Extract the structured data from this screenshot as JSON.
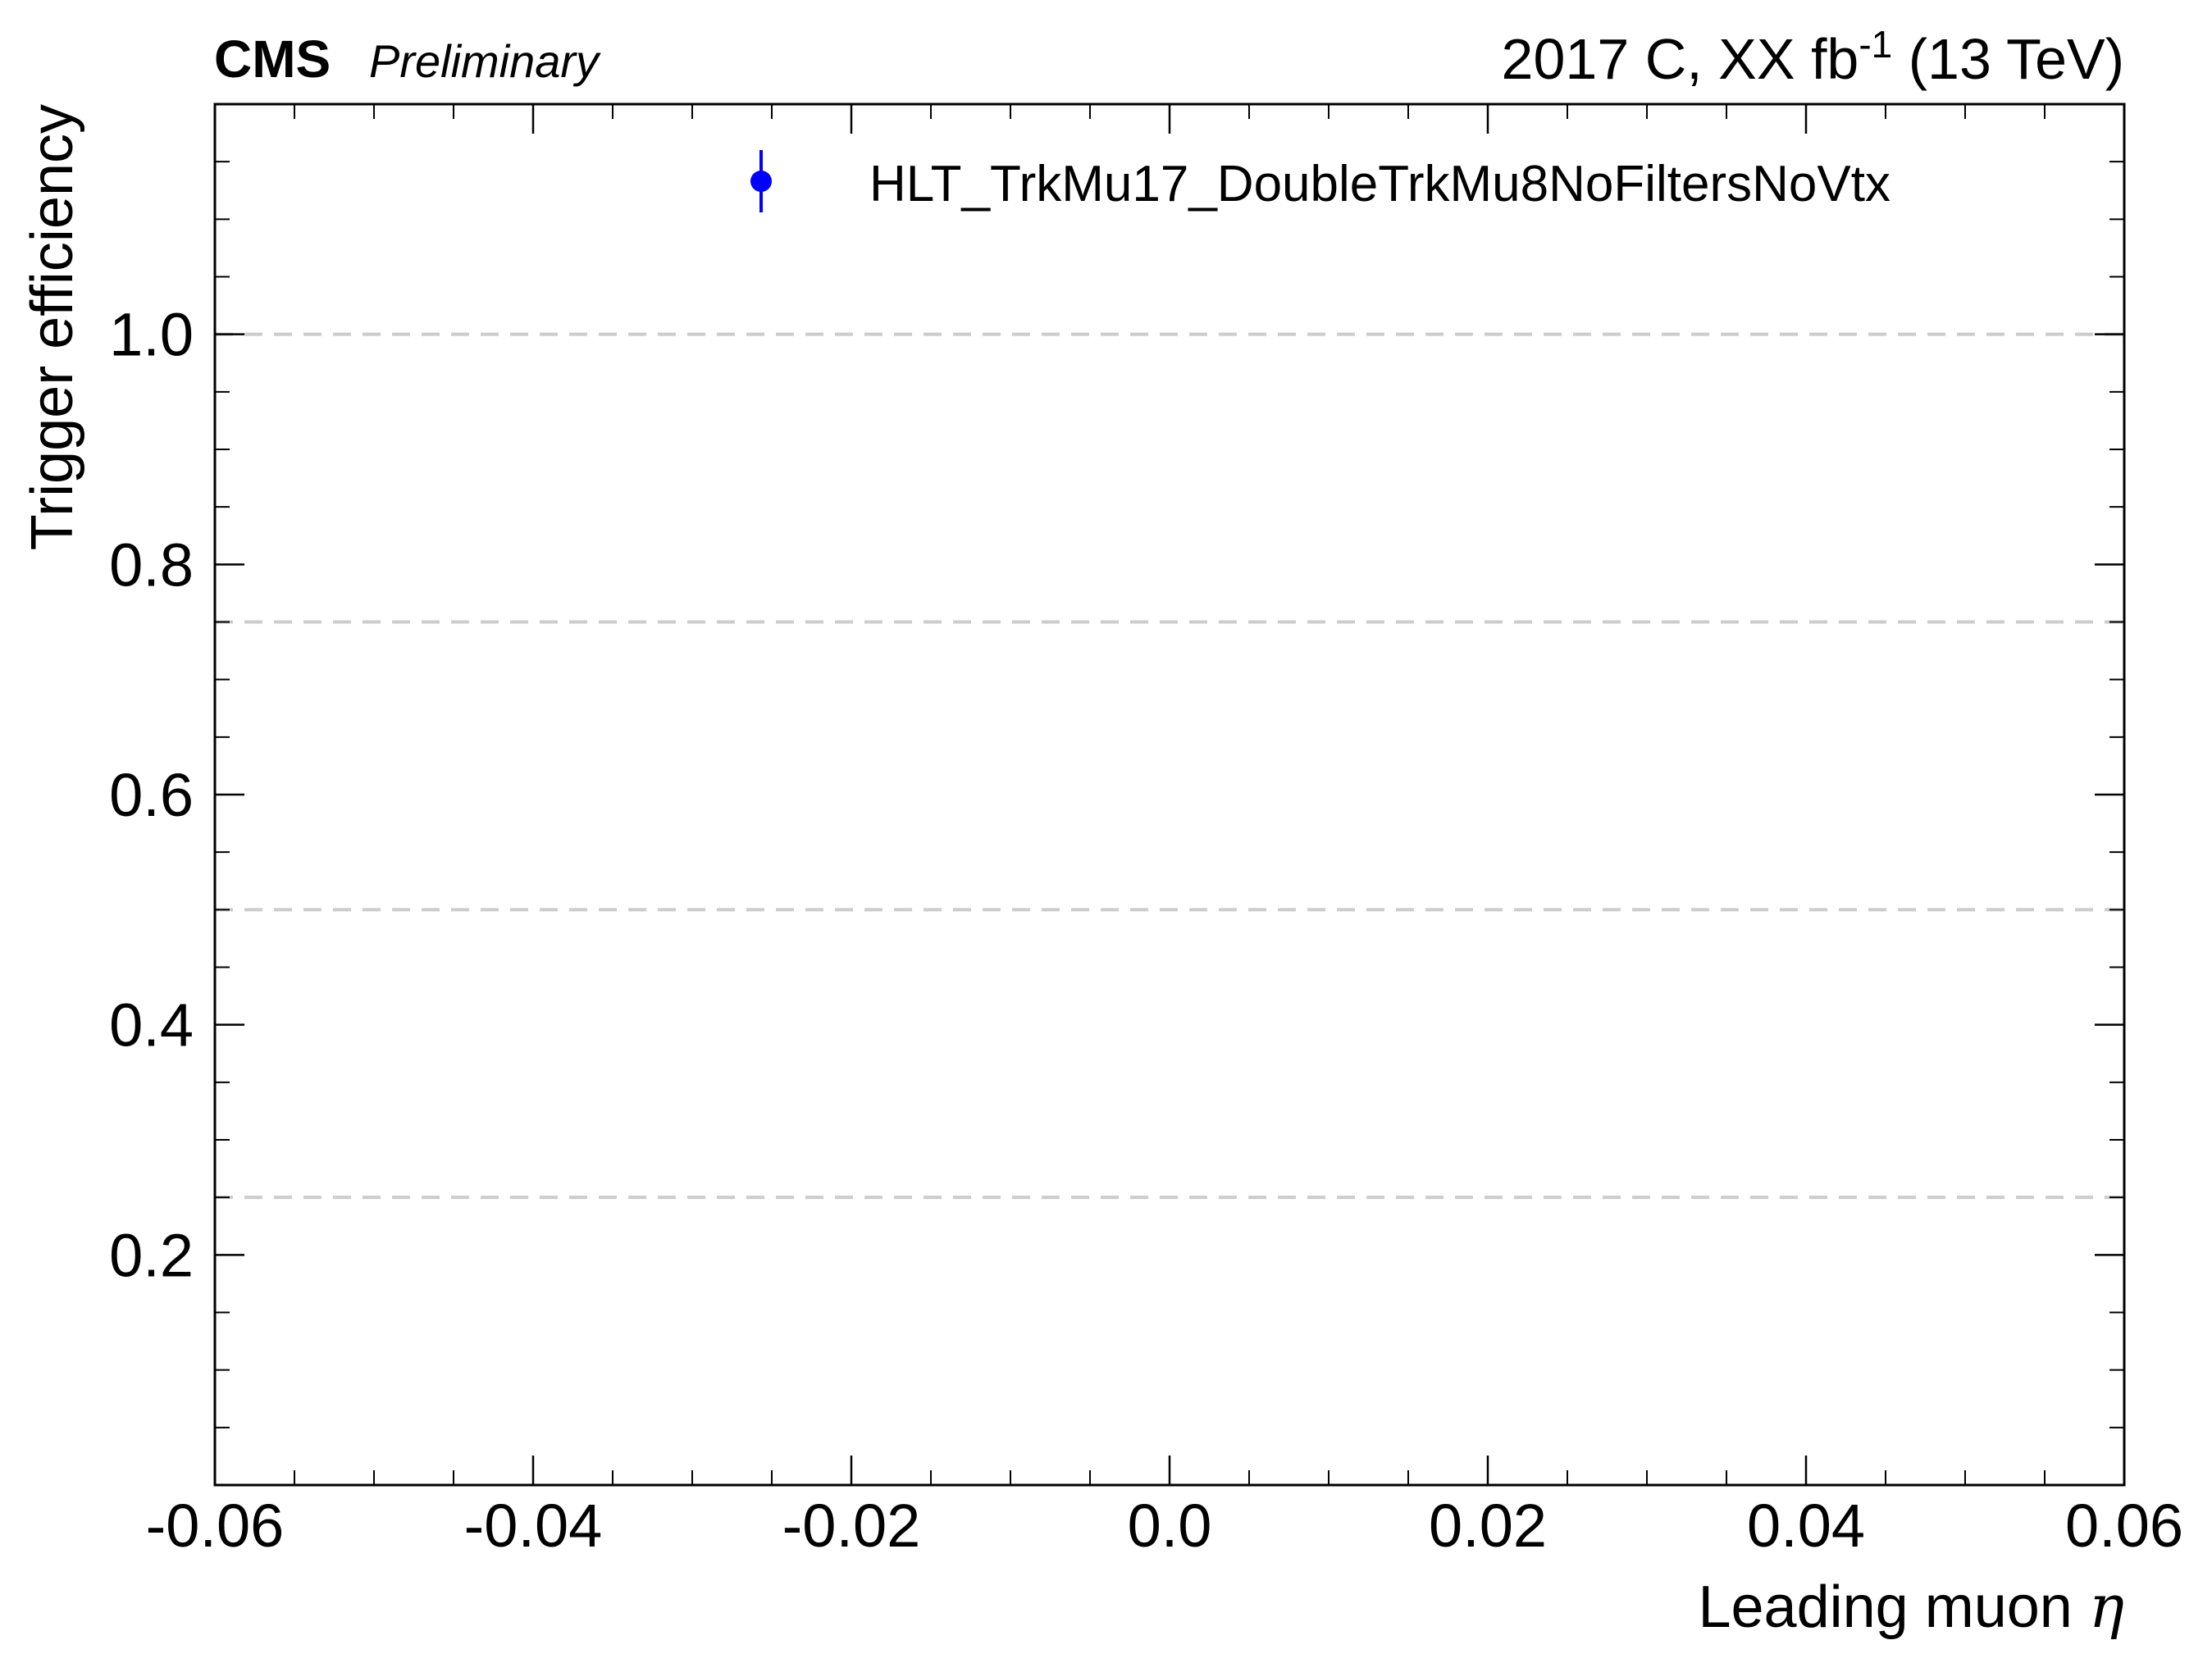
{
  "header": {
    "experiment": "CMS",
    "status": "Preliminary",
    "lumi_prefix": "2017 C, XX fb",
    "lumi_exponent": "-1",
    "lumi_suffix": " (13 TeV)"
  },
  "chart_data": {
    "type": "scatter",
    "xlabel": "Leading muon",
    "xlabel_symbol": "η",
    "ylabel": "Trigger efficiency",
    "xlim": [
      -0.06,
      0.06
    ],
    "ylim": [
      0.0,
      1.2
    ],
    "x_ticks": [
      "-0.06",
      "-0.04",
      "-0.02",
      "0.0",
      "0.02",
      "0.04",
      "0.06"
    ],
    "x_tick_values": [
      -0.06,
      -0.04,
      -0.02,
      0.0,
      0.02,
      0.04,
      0.06
    ],
    "y_ticks": [
      "0.2",
      "0.4",
      "0.6",
      "0.8",
      "1.0"
    ],
    "y_tick_values": [
      0.2,
      0.4,
      0.6,
      0.8,
      1.0
    ],
    "reference_lines": [
      0.25,
      0.5,
      0.75,
      1.0
    ],
    "grid": false,
    "legend_position": "top-right",
    "series": [
      {
        "name": "HLT_TrkMu17_DoubleTrkMu8NoFiltersNoVtx",
        "color": "#0000ff",
        "marker": "circle-with-error-bar",
        "points": []
      }
    ]
  }
}
